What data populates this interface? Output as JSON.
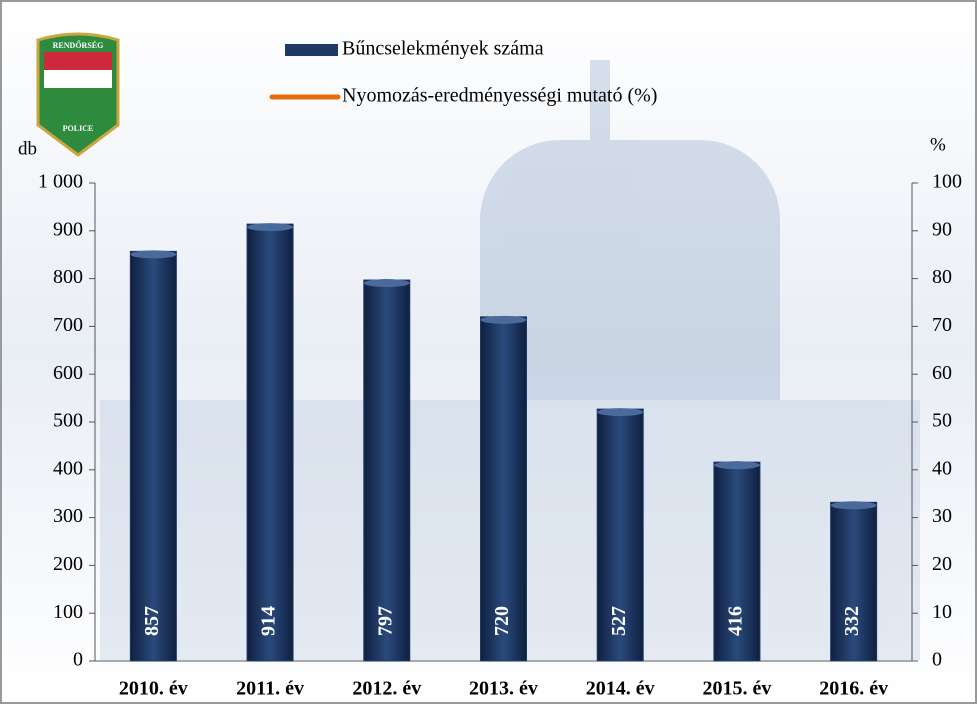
{
  "logo": {
    "top": "RENDŐRSÉG",
    "bottom": "POLICE"
  },
  "chart_data": {
    "type": "bar",
    "categories": [
      "2010. év",
      "2011. év",
      "2012. év",
      "2013. év",
      "2014. év",
      "2015. év",
      "2016. év"
    ],
    "series": [
      {
        "name": "Bűncselekmények száma",
        "color": "#1f3864",
        "values": [
          857,
          914,
          797,
          720,
          527,
          416,
          332
        ]
      },
      {
        "name": "Nyomozás-eredményességi mutató (%)",
        "color": "#e46c0a",
        "axis": "y2",
        "type": "line",
        "values": [
          null,
          null,
          null,
          null,
          null,
          null,
          null
        ]
      }
    ],
    "y_label": "db",
    "y2_label": "%",
    "ylim": [
      0,
      1000
    ],
    "yticks": [
      0,
      100,
      200,
      300,
      400,
      500,
      600,
      700,
      800,
      900,
      {
        "value": 1000,
        "label": "1 000"
      }
    ],
    "y2lim": [
      0,
      100
    ],
    "y2ticks": [
      0,
      10,
      20,
      30,
      40,
      50,
      60,
      70,
      80,
      90,
      100
    ]
  }
}
